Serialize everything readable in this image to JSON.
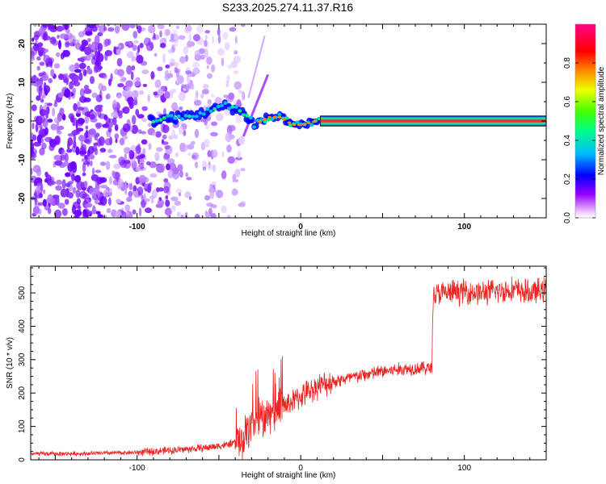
{
  "title": "S233.2025.274.11.37.R16",
  "chart_data": [
    {
      "type": "heatmap",
      "panel": "spectrogram",
      "xlabel": "Height of straight line (km)",
      "ylabel": "Frequency (Hz)",
      "xlim": [
        -165,
        150
      ],
      "ylim": [
        -25,
        25
      ],
      "xticks": [
        -100,
        0,
        100
      ],
      "yticks": [
        -20,
        -10,
        0,
        10,
        20
      ],
      "colorbar": {
        "label": "Normalized spectral amplitude",
        "range": [
          0,
          1
        ],
        "ticks": [
          0.0,
          0.2,
          0.4,
          0.6,
          0.8
        ],
        "tick_labels": [
          "0.0",
          "0.2",
          "0.4",
          "0.6",
          "0.8"
        ],
        "colors": [
          "#ffffff",
          "#f5e0ff",
          "#8800ff",
          "#0000ff",
          "#00ccff",
          "#00ff66",
          "#66ff00",
          "#ffee00",
          "#ff8800",
          "#ff0000",
          "#ff00aa"
        ]
      },
      "ridge": {
        "description_points_x": [
          -90,
          -75,
          -60,
          -45,
          -35,
          -28,
          -20,
          -12,
          -5,
          0,
          10,
          20,
          150
        ],
        "description_points_y": [
          0,
          1,
          2,
          4,
          2,
          -1,
          1,
          1,
          -1,
          -1,
          0,
          0,
          0
        ]
      }
    },
    {
      "type": "line",
      "panel": "snr",
      "xlabel": "Height of straight line (km)",
      "ylabel": "SNR (10 * v/v)",
      "xlim": [
        -165,
        150
      ],
      "ylim": [
        0,
        580
      ],
      "xticks": [
        -100,
        0,
        100
      ],
      "yticks": [
        0,
        100,
        200,
        300,
        400,
        500
      ],
      "color": "#ee2222",
      "series": [
        {
          "name": "SNR",
          "x": [
            -165,
            -140,
            -120,
            -100,
            -80,
            -60,
            -45,
            -35,
            -30,
            -25,
            -20,
            -10,
            0,
            10,
            20,
            30,
            40,
            50,
            60,
            70,
            80,
            81,
            90,
            100,
            110,
            120,
            130,
            140,
            150
          ],
          "y": [
            18,
            18,
            20,
            22,
            28,
            35,
            45,
            60,
            110,
            120,
            130,
            160,
            190,
            220,
            235,
            245,
            255,
            265,
            270,
            275,
            275,
            495,
            500,
            505,
            500,
            505,
            510,
            500,
            510
          ]
        }
      ]
    }
  ]
}
